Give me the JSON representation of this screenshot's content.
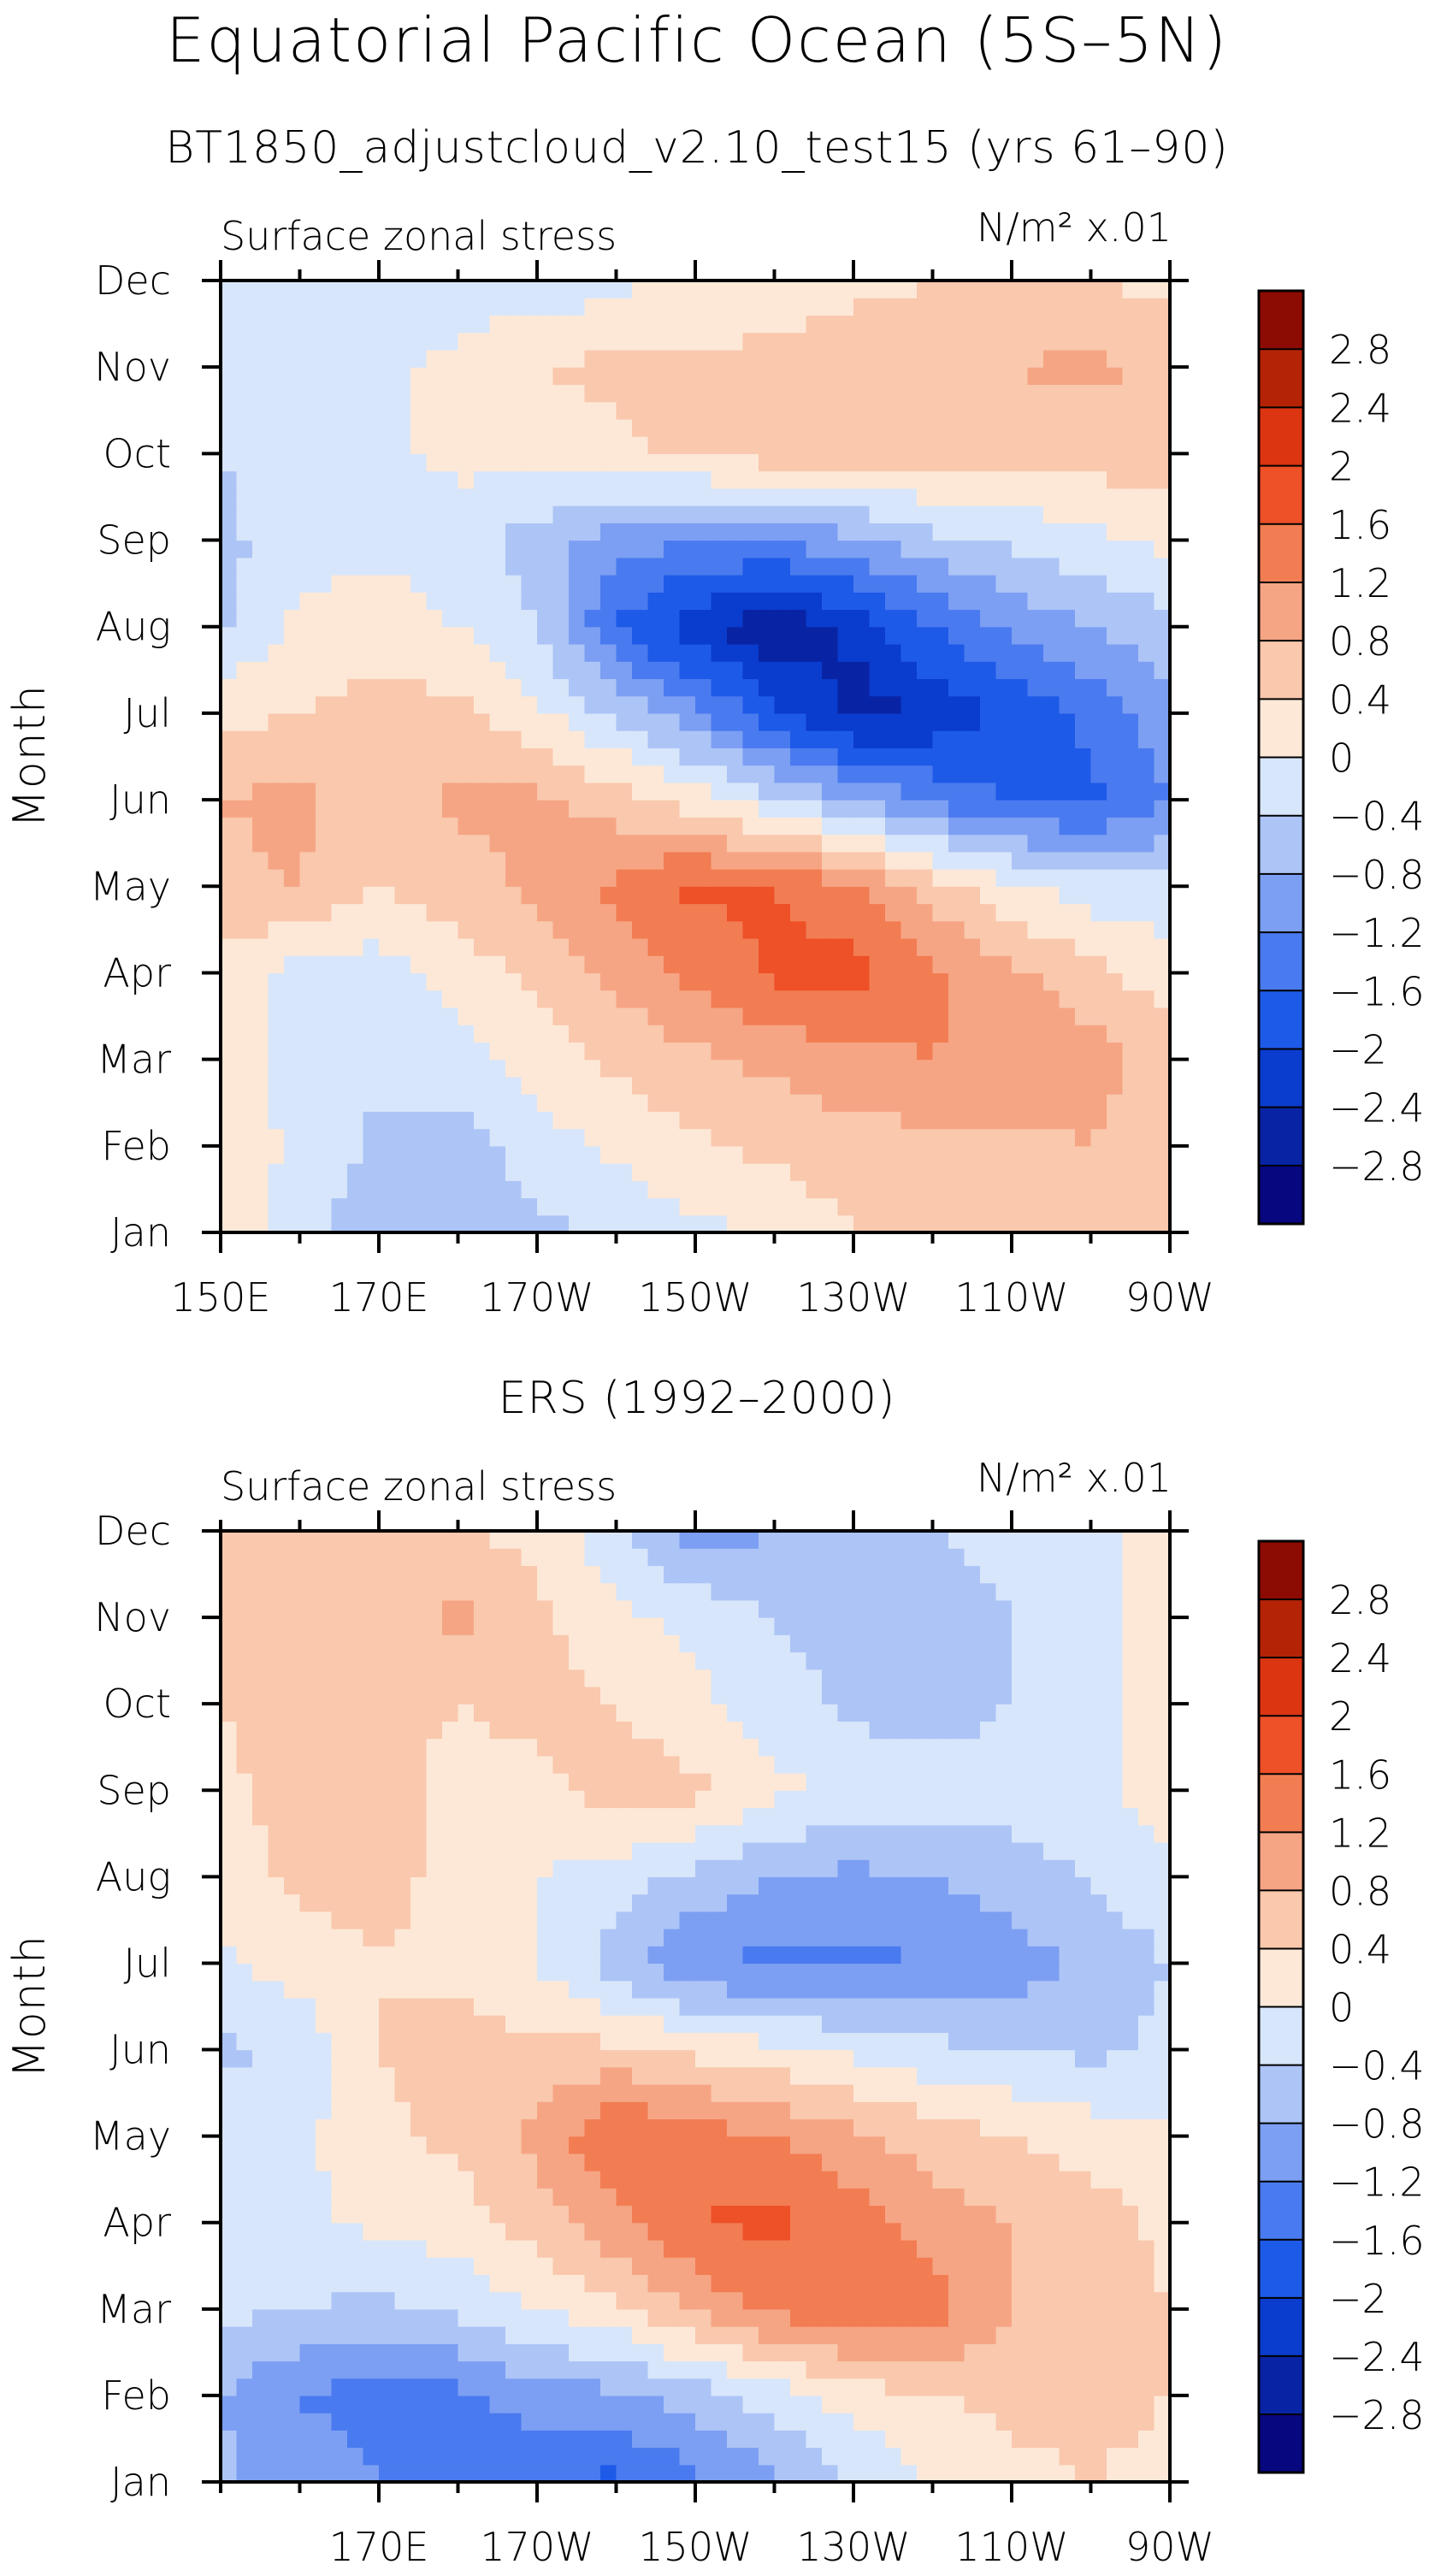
{
  "figure": {
    "title": "Equatorial Pacific Ocean (5S–5N)"
  },
  "palette": {
    "levels": [
      "-2.8",
      "-2.4",
      "-2",
      "-1.6",
      "-1.2",
      "-0.8",
      "-0.4",
      "0",
      "0.4",
      "0.8",
      "1.2",
      "1.6",
      "2",
      "2.4",
      "2.8"
    ],
    "colors": [
      "#07077f",
      "#0824a4",
      "#0a3ccd",
      "#1e5ae8",
      "#4a7aef",
      "#7c9ff3",
      "#adc4f6",
      "#d7e6fb",
      "#fde8d7",
      "#f9c8ad",
      "#f6a584",
      "#f27d53",
      "#ee5028",
      "#dc3512",
      "#b42306",
      "#8c0b02"
    ]
  },
  "chart_data": [
    {
      "type": "heatmap",
      "title": "BT1850_adjustcloud_v2.10_test15 (yrs 61–90)",
      "left_label": "Surface zonal stress",
      "right_label": "N/m² x.01",
      "ylabel": "Month",
      "x": [
        150,
        160,
        170,
        180,
        190,
        200,
        210,
        220,
        230,
        240,
        250,
        260,
        270
      ],
      "x_tick_labels": [
        "150E",
        "170E",
        "170W",
        "150W",
        "130W",
        "110W",
        "90W"
      ],
      "x_tick_values": [
        150,
        170,
        190,
        210,
        230,
        250,
        270
      ],
      "y": [
        "Jan",
        "Feb",
        "Mar",
        "Apr",
        "May",
        "Jun",
        "Jul",
        "Aug",
        "Sep",
        "Oct",
        "Nov",
        "Dec"
      ],
      "values": [
        [
          0.3,
          -0.3,
          -0.6,
          -0.6,
          -0.5,
          -0.3,
          -0.1,
          0.1,
          0.4,
          0.5,
          0.5,
          0.5,
          0.4
        ],
        [
          0.3,
          -0.1,
          -0.5,
          -0.6,
          -0.2,
          0.1,
          0.3,
          0.5,
          0.6,
          0.7,
          0.7,
          0.8,
          0.5
        ],
        [
          0.3,
          -0.2,
          -0.3,
          -0.2,
          0.2,
          0.5,
          0.7,
          0.9,
          1.1,
          1.2,
          1.1,
          1.0,
          0.6
        ],
        [
          0.3,
          -0.2,
          -0.2,
          0.2,
          0.5,
          0.9,
          1.3,
          1.7,
          1.8,
          1.3,
          0.9,
          0.5,
          0.2
        ],
        [
          0.7,
          0.8,
          0.4,
          0.6,
          0.9,
          1.3,
          1.7,
          1.6,
          1.2,
          0.6,
          0.1,
          -0.2,
          -0.3
        ],
        [
          0.8,
          0.9,
          0.6,
          0.9,
          0.9,
          0.6,
          0.2,
          -0.3,
          -0.8,
          -1.3,
          -1.6,
          -1.7,
          -1.2
        ],
        [
          0.3,
          0.4,
          0.6,
          0.5,
          0.1,
          -0.5,
          -1.1,
          -1.9,
          -2.6,
          -2.3,
          -1.9,
          -1.5,
          -0.9
        ],
        [
          -0.5,
          0.1,
          0.2,
          0.0,
          -0.4,
          -1.6,
          -2.3,
          -2.7,
          -2.3,
          -1.6,
          -1.1,
          -0.8,
          -0.5
        ],
        [
          -0.5,
          -0.2,
          -0.1,
          -0.2,
          -0.6,
          -1.0,
          -1.2,
          -1.2,
          -0.9,
          -0.5,
          -0.3,
          -0.1,
          0.1
        ],
        [
          -0.4,
          -0.1,
          -0.1,
          0.1,
          0.2,
          0.3,
          0.5,
          0.6,
          0.6,
          0.6,
          0.5,
          0.6,
          0.6
        ],
        [
          -0.2,
          -0.1,
          -0.1,
          0.1,
          0.4,
          0.5,
          0.5,
          0.5,
          0.6,
          0.7,
          0.8,
          0.9,
          0.7
        ],
        [
          -0.3,
          -0.3,
          -0.1,
          -0.2,
          -0.3,
          -0.1,
          0.1,
          0.2,
          0.3,
          0.4,
          0.4,
          0.4,
          0.3
        ]
      ]
    },
    {
      "type": "heatmap",
      "title": "ERS (1992–2000)",
      "left_label": "Surface zonal stress",
      "right_label": "N/m² x.01",
      "ylabel": "Month",
      "x": [
        150,
        160,
        170,
        180,
        190,
        200,
        210,
        220,
        230,
        240,
        250,
        260,
        270
      ],
      "x_tick_labels": [
        "170E",
        "170W",
        "150W",
        "130W",
        "110W",
        "90W"
      ],
      "x_tick_values": [
        170,
        190,
        210,
        230,
        250,
        270
      ],
      "y": [
        "Jan",
        "Feb",
        "Mar",
        "Apr",
        "May",
        "Jun",
        "Jul",
        "Aug",
        "Sep",
        "Oct",
        "Nov",
        "Dec"
      ],
      "values": [
        [
          -0.7,
          -1.0,
          -1.2,
          -1.4,
          -1.6,
          -1.7,
          -1.3,
          -0.9,
          -0.4,
          0.0,
          0.3,
          0.4,
          0.3
        ],
        [
          -0.8,
          -1.2,
          -1.4,
          -1.3,
          -1.0,
          -0.9,
          -0.6,
          -0.2,
          0.2,
          0.4,
          0.5,
          0.5,
          0.4
        ],
        [
          -0.3,
          -0.4,
          -0.5,
          -0.3,
          0.0,
          0.3,
          0.9,
          1.3,
          1.6,
          1.4,
          0.8,
          0.6,
          0.4
        ],
        [
          -0.2,
          -0.1,
          0.1,
          0.2,
          0.6,
          1.1,
          1.6,
          1.7,
          1.4,
          1.0,
          0.8,
          0.6,
          0.3
        ],
        [
          -0.2,
          -0.1,
          0.3,
          0.5,
          0.9,
          1.6,
          1.4,
          1.2,
          0.9,
          0.6,
          0.4,
          0.2,
          0.1
        ],
        [
          -0.5,
          -0.3,
          0.4,
          0.6,
          0.5,
          0.5,
          0.3,
          0.1,
          -0.1,
          -0.3,
          -0.4,
          -0.5,
          -0.3
        ],
        [
          -0.1,
          0.2,
          0.4,
          0.3,
          0.0,
          -0.6,
          -1.2,
          -1.3,
          -1.3,
          -1.2,
          -1.0,
          -0.7,
          -0.4
        ],
        [
          0.2,
          0.5,
          0.5,
          0.3,
          0.0,
          -0.2,
          -0.5,
          -0.8,
          -0.9,
          -0.8,
          -0.6,
          -0.4,
          -0.1
        ],
        [
          0.3,
          0.6,
          0.5,
          0.3,
          0.3,
          0.6,
          0.5,
          0.1,
          -0.1,
          -0.2,
          -0.2,
          -0.1,
          0.2
        ],
        [
          0.4,
          0.6,
          0.5,
          0.4,
          0.5,
          0.4,
          0.1,
          -0.2,
          -0.5,
          -0.6,
          -0.4,
          -0.2,
          0.3
        ],
        [
          0.5,
          0.6,
          0.6,
          0.9,
          0.5,
          0.1,
          -0.1,
          -0.4,
          -0.6,
          -0.6,
          -0.4,
          -0.2,
          0.2
        ],
        [
          0.6,
          0.7,
          0.5,
          0.4,
          0.3,
          -0.3,
          -1.0,
          -0.8,
          -0.5,
          -0.4,
          -0.3,
          -0.2,
          0.2
        ]
      ]
    }
  ]
}
